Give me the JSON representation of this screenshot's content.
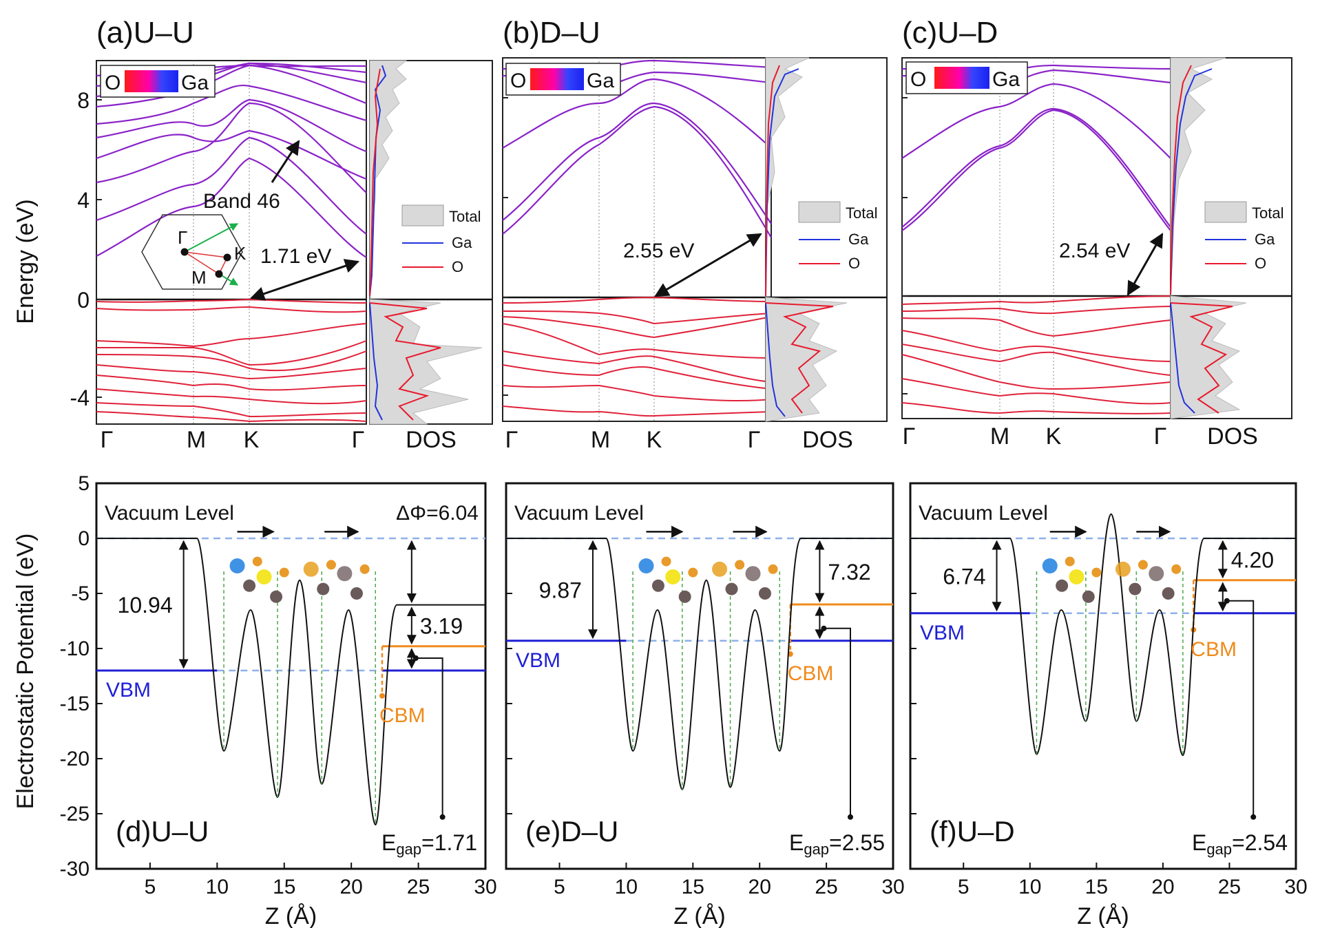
{
  "figure": {
    "y_axis_top": "Energy (eV)",
    "y_axis_bottom": "Electrostatic Potential (eV)",
    "x_axis_bottom": "Z (Å)",
    "dos_label": "DOS",
    "legend_total": "Total",
    "legend_ga": "Ga",
    "legend_o": "O",
    "colorbar_left": "O",
    "colorbar_right": "Ga",
    "vacuum_label": "Vacuum Level",
    "vbm_label": "VBM",
    "cbm_label": "CBM",
    "egap_prefix": "E",
    "egap_sub": "gap",
    "band46": "Band 46",
    "bz_gamma": "Γ",
    "bz_m": "M",
    "bz_k": "K"
  },
  "colors": {
    "vbm": "#1f1fd6",
    "cbm": "#f08a1a",
    "o": "#e8192c",
    "ga": "#2233dd",
    "band_cond": "#8a22c8",
    "band_val": "#e0213a",
    "dos_fill": "#d9d9d9"
  },
  "chart_data": [
    {
      "type": "line",
      "id": "a",
      "title": "(a)U–U",
      "ylabel": "Energy (eV)",
      "ylim": [
        -5,
        9.5
      ],
      "yticks": [
        -4,
        0,
        4,
        8
      ],
      "kpath": [
        "Γ",
        "M",
        "K",
        "Γ"
      ],
      "gap_label": "1.71 eV",
      "gap_eV": 1.71,
      "cond_band_min_eV": [
        1.71,
        3.3,
        4.4,
        6.0,
        6.4,
        7.0,
        7.6,
        8.0,
        8.6,
        9.0
      ],
      "val_band_max_eV": [
        0.0,
        -0.3,
        -1.5,
        -1.8,
        -2.2,
        -2.6,
        -3.0,
        -3.6,
        -4.0,
        -4.5
      ]
    },
    {
      "type": "line",
      "id": "b",
      "title": "(b)D–U",
      "ylabel": "",
      "ylim": [
        -5,
        9.5
      ],
      "yticks": [
        -4,
        0,
        4,
        8
      ],
      "kpath": [
        "Γ",
        "M",
        "K",
        "Γ"
      ],
      "gap_label": "2.55 eV",
      "gap_eV": 2.55,
      "cond_band_min_eV": [
        2.55,
        3.3,
        6.0,
        8.8,
        9.3
      ],
      "val_band_max_eV": [
        0.0,
        -0.4,
        -0.8,
        -1.2,
        -1.9,
        -2.4,
        -3.0,
        -3.6
      ]
    },
    {
      "type": "line",
      "id": "c",
      "title": "(c)U–D",
      "ylabel": "",
      "ylim": [
        -5,
        9.5
      ],
      "yticks": [
        -4,
        0,
        4,
        8
      ],
      "kpath": [
        "Γ",
        "M",
        "K",
        "Γ"
      ],
      "gap_label": "2.54 eV",
      "gap_eV": 2.54,
      "cond_band_min_eV": [
        2.54,
        2.9,
        6.0,
        8.8,
        9.3
      ],
      "val_band_max_eV": [
        0.0,
        -0.3,
        -0.6,
        -1.0,
        -1.5,
        -2.1,
        -2.7,
        -3.4
      ]
    },
    {
      "type": "line",
      "id": "d",
      "title": "(d)U–U",
      "xlabel": "Z (Å)",
      "ylabel": "Electrostatic Potential (eV)",
      "xlim": [
        1,
        30
      ],
      "ylim": [
        -30,
        5
      ],
      "xticks": [
        5,
        10,
        15,
        20,
        25,
        30
      ],
      "yticks": [
        5,
        0,
        -5,
        -10,
        -15,
        -20,
        -25,
        -30
      ],
      "vacuum_level": 0,
      "right_vacuum": -6.04,
      "vbm": -12.0,
      "cbm": -9.8,
      "delta_phi_label": "ΔΦ=6.04",
      "left_gap_label": "10.94",
      "right_label_top": "",
      "right_label_bottom": "3.19",
      "egap_value": "=1.71",
      "potential_minima": [
        [
          10.5,
          -19.3
        ],
        [
          14.5,
          -23.5
        ],
        [
          17.8,
          -22.3
        ],
        [
          21.8,
          -26.0
        ]
      ]
    },
    {
      "type": "line",
      "id": "e",
      "title": "(e)D–U",
      "xlabel": "Z (Å)",
      "ylabel": "",
      "xlim": [
        1,
        30
      ],
      "ylim": [
        -30,
        5
      ],
      "xticks": [
        5,
        10,
        15,
        20,
        25,
        30
      ],
      "yticks": [
        5,
        0,
        -5,
        -10,
        -15,
        -20,
        -25,
        -30
      ],
      "vacuum_level": 0,
      "right_vacuum": 0,
      "vbm": -9.3,
      "cbm": -6.0,
      "delta_phi_label": "",
      "left_gap_label": "9.87",
      "right_label_top": "7.32",
      "right_label_bottom": "",
      "egap_value": "=2.55",
      "potential_minima": [
        [
          10.5,
          -19.3
        ],
        [
          14.2,
          -22.8
        ],
        [
          17.8,
          -22.6
        ],
        [
          21.5,
          -19.3
        ]
      ]
    },
    {
      "type": "line",
      "id": "f",
      "title": "(f)U–D",
      "xlabel": "Z (Å)",
      "ylabel": "",
      "xlim": [
        1,
        30
      ],
      "ylim": [
        -30,
        5
      ],
      "xticks": [
        5,
        10,
        15,
        20,
        25,
        30
      ],
      "yticks": [
        5,
        0,
        -5,
        -10,
        -15,
        -20,
        -25,
        -30
      ],
      "vacuum_level": 0,
      "right_vacuum": 0,
      "vbm": -6.8,
      "cbm": -3.8,
      "delta_phi_label": "",
      "left_gap_label": "6.74",
      "right_label_top": "4.20",
      "right_label_bottom": "",
      "egap_value": "=2.54",
      "potential_minima": [
        [
          10.5,
          -19.6
        ],
        [
          14.2,
          -16.6
        ],
        [
          18.0,
          -16.6
        ],
        [
          21.5,
          -19.7
        ]
      ]
    }
  ]
}
